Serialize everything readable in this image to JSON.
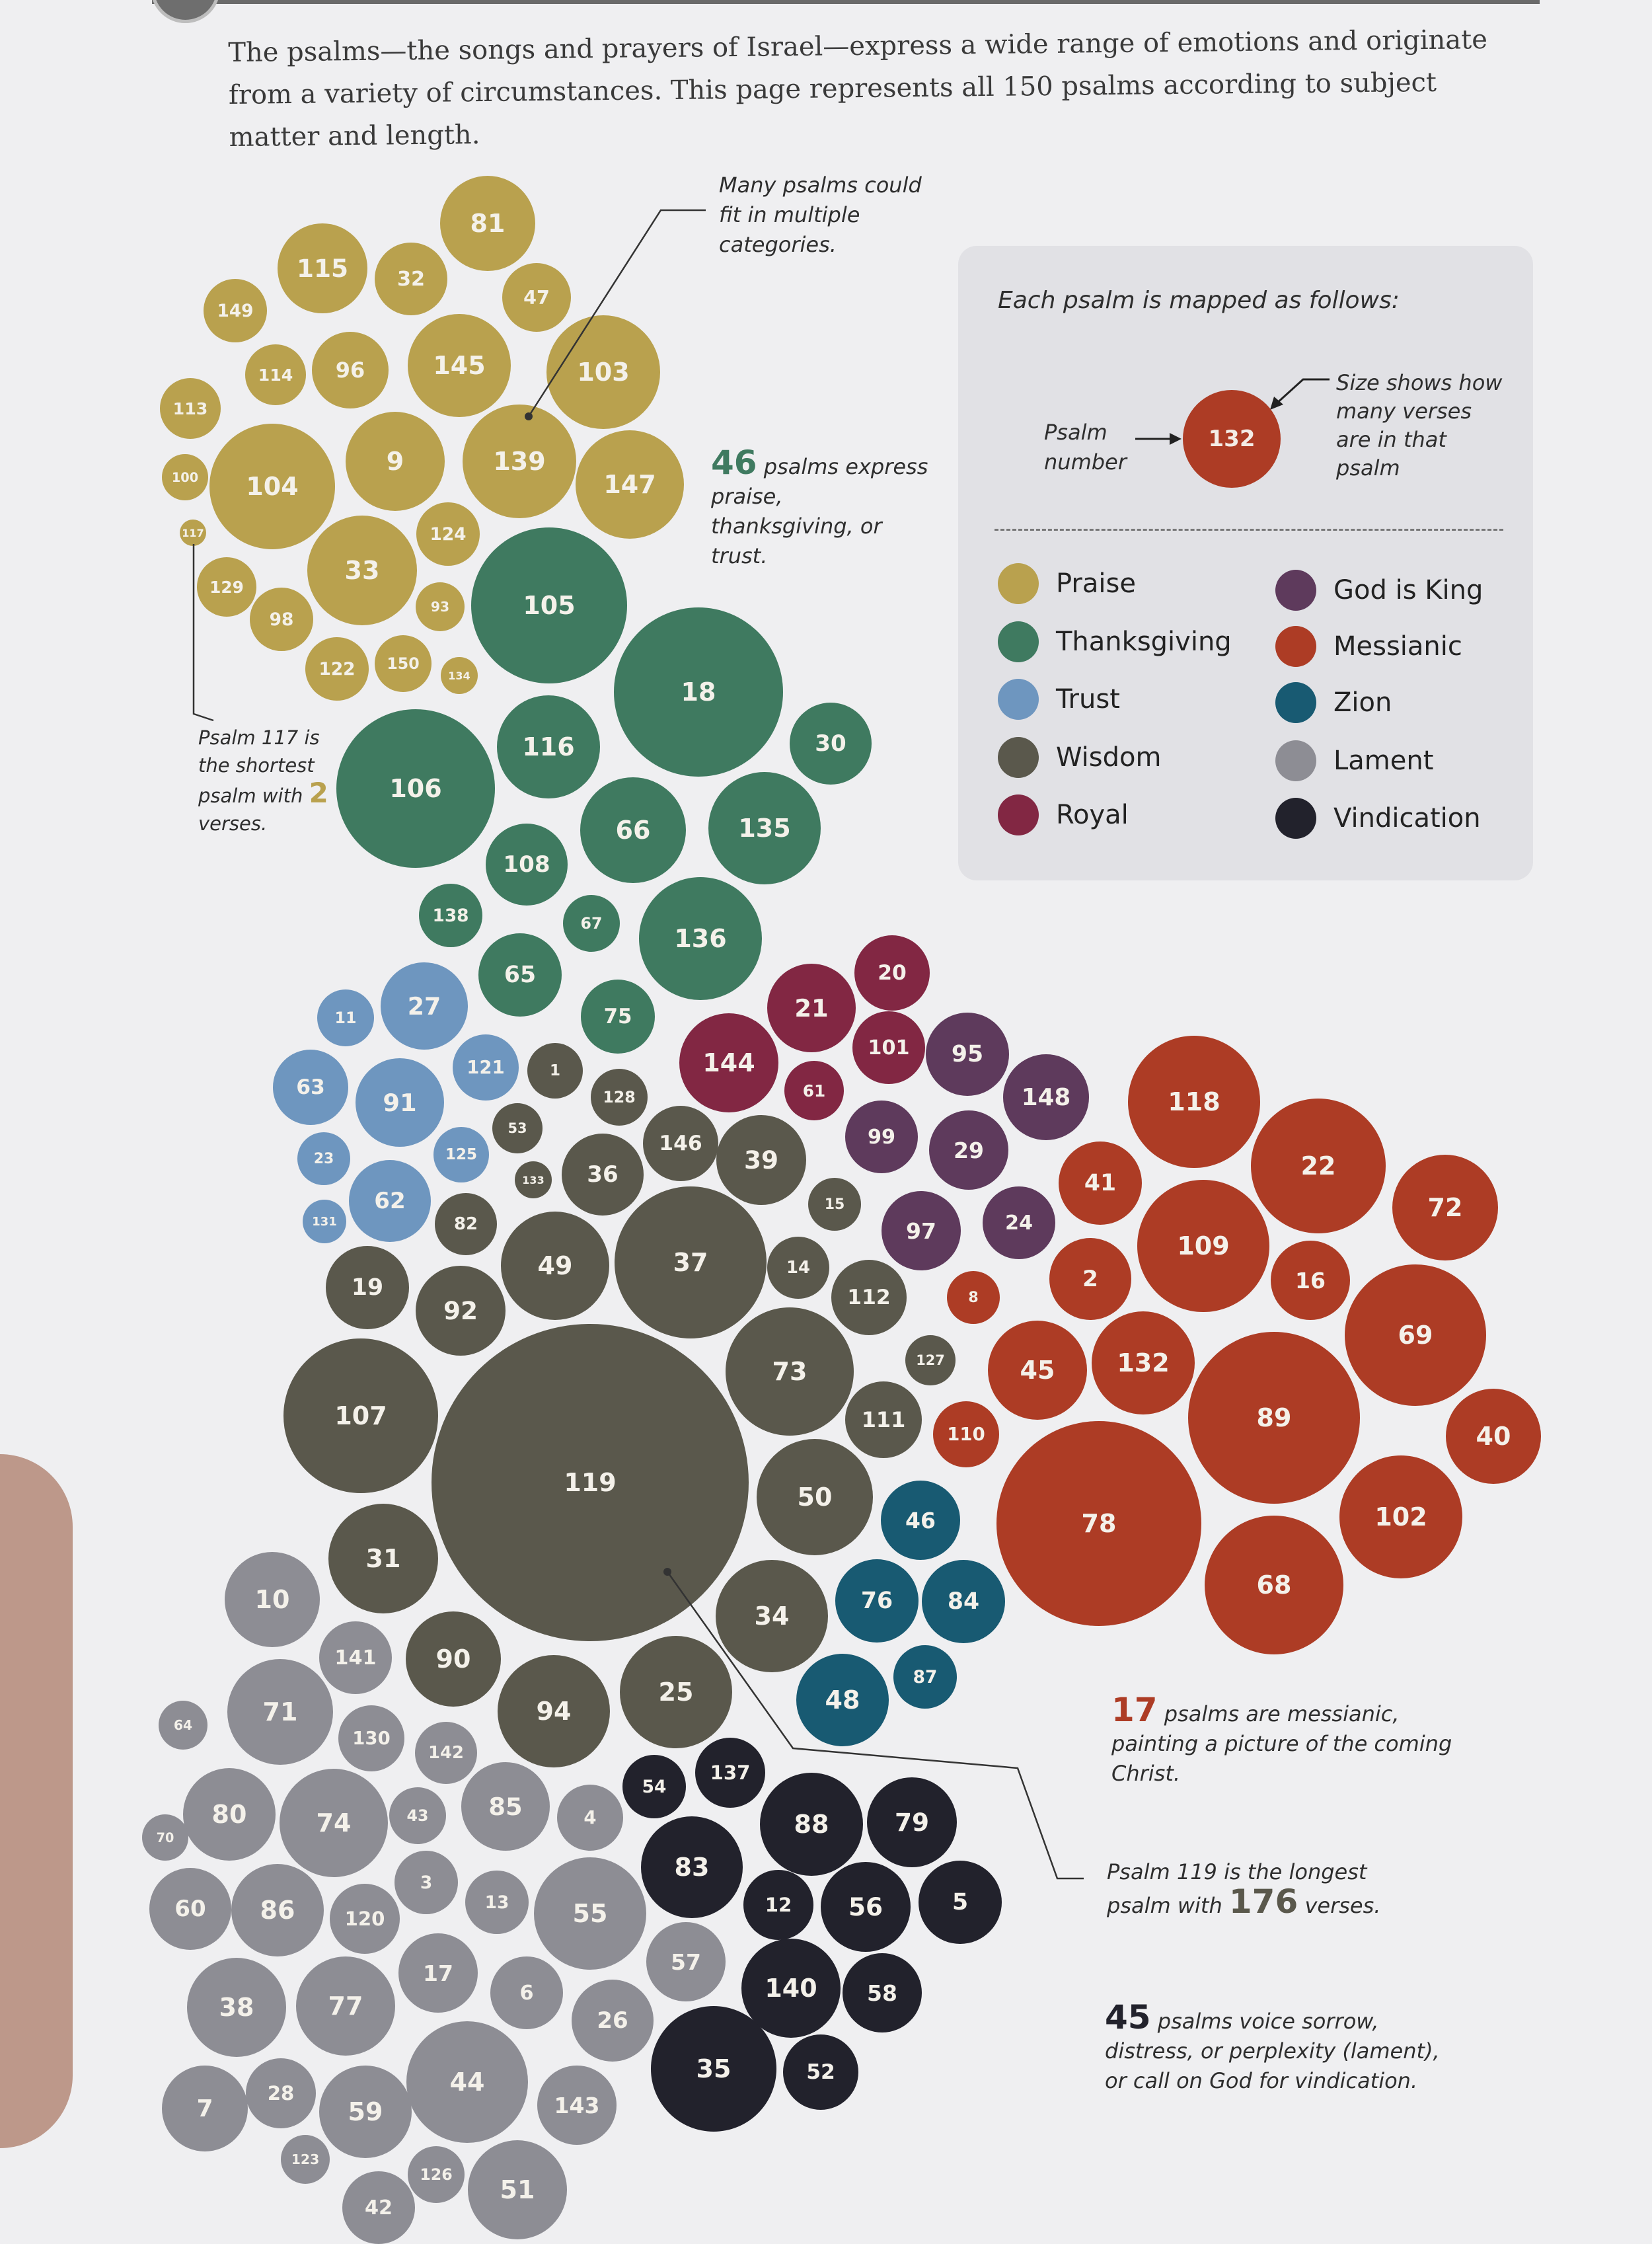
{
  "intro": "The psalms—the songs and prayers of Israel—express a wide range of emotions and originate from a variety of circumstances. This page represents all 150 psalms according to subject matter and length.",
  "colors": {
    "praise": "#b9a14e",
    "thanksgiving": "#3f7a60",
    "trust": "#6e96bf",
    "wisdom": "#5a584c",
    "royal": "#822743",
    "godisking": "#5e3a5c",
    "messianic": "#ad3c25",
    "zion": "#185a72",
    "lament": "#8d8d94",
    "vindication": "#22222c"
  },
  "legend": {
    "title": "Each psalm is mapped as follows:",
    "example_number": "132",
    "psalm_number_label": "Psalm number",
    "size_label": "Size shows how many verses are in that psalm",
    "items": [
      {
        "key": "praise",
        "label": "Praise"
      },
      {
        "key": "thanksgiving",
        "label": "Thanksgiving"
      },
      {
        "key": "trust",
        "label": "Trust"
      },
      {
        "key": "wisdom",
        "label": "Wisdom"
      },
      {
        "key": "royal",
        "label": "Royal"
      },
      {
        "key": "godisking",
        "label": "God is King"
      },
      {
        "key": "messianic",
        "label": "Messianic"
      },
      {
        "key": "zion",
        "label": "Zion"
      },
      {
        "key": "lament",
        "label": "Lament"
      },
      {
        "key": "vindication",
        "label": "Vindication"
      }
    ]
  },
  "notes": {
    "multiple": "Many psalms could fit in multiple categories.",
    "praise_count": "46",
    "praise_text": "psalms express praise, thanksgiving, or trust.",
    "shortest_a": "Psalm 117 is the shortest psalm with",
    "shortest_num": "2",
    "shortest_b": "verses.",
    "messianic_count": "17",
    "messianic_text": "psalms are messianic, painting a picture of the coming Christ.",
    "longest_a": "Psalm 119 is the longest psalm with",
    "longest_num": "176",
    "longest_b": "verses.",
    "lament_count": "45",
    "lament_text": "psalms voice sorrow, distress, or perplexity (lament), or call on God for vindication."
  },
  "psalms": [
    {
      "n": "81",
      "c": "praise"
    },
    {
      "n": "115",
      "c": "praise"
    },
    {
      "n": "32",
      "c": "praise"
    },
    {
      "n": "47",
      "c": "praise"
    },
    {
      "n": "149",
      "c": "praise"
    },
    {
      "n": "114",
      "c": "praise"
    },
    {
      "n": "96",
      "c": "praise"
    },
    {
      "n": "145",
      "c": "praise"
    },
    {
      "n": "103",
      "c": "praise"
    },
    {
      "n": "113",
      "c": "praise"
    },
    {
      "n": "100",
      "c": "praise"
    },
    {
      "n": "104",
      "c": "praise"
    },
    {
      "n": "9",
      "c": "praise"
    },
    {
      "n": "139",
      "c": "praise"
    },
    {
      "n": "147",
      "c": "praise"
    },
    {
      "n": "117",
      "c": "praise"
    },
    {
      "n": "124",
      "c": "praise"
    },
    {
      "n": "33",
      "c": "praise"
    },
    {
      "n": "129",
      "c": "praise"
    },
    {
      "n": "98",
      "c": "praise"
    },
    {
      "n": "93",
      "c": "praise"
    },
    {
      "n": "122",
      "c": "praise"
    },
    {
      "n": "150",
      "c": "praise"
    },
    {
      "n": "134",
      "c": "praise"
    },
    {
      "n": "105",
      "c": "thanksgiving"
    },
    {
      "n": "18",
      "c": "thanksgiving"
    },
    {
      "n": "30",
      "c": "thanksgiving"
    },
    {
      "n": "116",
      "c": "thanksgiving"
    },
    {
      "n": "106",
      "c": "thanksgiving"
    },
    {
      "n": "66",
      "c": "thanksgiving"
    },
    {
      "n": "135",
      "c": "thanksgiving"
    },
    {
      "n": "108",
      "c": "thanksgiving"
    },
    {
      "n": "138",
      "c": "thanksgiving"
    },
    {
      "n": "67",
      "c": "thanksgiving"
    },
    {
      "n": "136",
      "c": "thanksgiving"
    },
    {
      "n": "65",
      "c": "thanksgiving"
    },
    {
      "n": "75",
      "c": "thanksgiving"
    },
    {
      "n": "11",
      "c": "trust"
    },
    {
      "n": "27",
      "c": "trust"
    },
    {
      "n": "63",
      "c": "trust"
    },
    {
      "n": "91",
      "c": "trust"
    },
    {
      "n": "121",
      "c": "trust"
    },
    {
      "n": "23",
      "c": "trust"
    },
    {
      "n": "125",
      "c": "trust"
    },
    {
      "n": "62",
      "c": "trust"
    },
    {
      "n": "131",
      "c": "trust"
    },
    {
      "n": "1",
      "c": "wisdom"
    },
    {
      "n": "128",
      "c": "wisdom"
    },
    {
      "n": "53",
      "c": "wisdom"
    },
    {
      "n": "133",
      "c": "wisdom"
    },
    {
      "n": "36",
      "c": "wisdom"
    },
    {
      "n": "146",
      "c": "wisdom"
    },
    {
      "n": "39",
      "c": "wisdom"
    },
    {
      "n": "15",
      "c": "wisdom"
    },
    {
      "n": "82",
      "c": "wisdom"
    },
    {
      "n": "49",
      "c": "wisdom"
    },
    {
      "n": "37",
      "c": "wisdom"
    },
    {
      "n": "14",
      "c": "wisdom"
    },
    {
      "n": "112",
      "c": "wisdom"
    },
    {
      "n": "19",
      "c": "wisdom"
    },
    {
      "n": "92",
      "c": "wisdom"
    },
    {
      "n": "73",
      "c": "wisdom"
    },
    {
      "n": "127",
      "c": "wisdom"
    },
    {
      "n": "107",
      "c": "wisdom"
    },
    {
      "n": "111",
      "c": "wisdom"
    },
    {
      "n": "119",
      "c": "wisdom"
    },
    {
      "n": "50",
      "c": "wisdom"
    },
    {
      "n": "31",
      "c": "wisdom"
    },
    {
      "n": "34",
      "c": "wisdom"
    },
    {
      "n": "90",
      "c": "wisdom"
    },
    {
      "n": "94",
      "c": "wisdom"
    },
    {
      "n": "25",
      "c": "wisdom"
    },
    {
      "n": "20",
      "c": "royal"
    },
    {
      "n": "21",
      "c": "royal"
    },
    {
      "n": "144",
      "c": "royal"
    },
    {
      "n": "101",
      "c": "royal"
    },
    {
      "n": "61",
      "c": "royal"
    },
    {
      "n": "95",
      "c": "godisking"
    },
    {
      "n": "148",
      "c": "godisking"
    },
    {
      "n": "99",
      "c": "godisking"
    },
    {
      "n": "29",
      "c": "godisking"
    },
    {
      "n": "97",
      "c": "godisking"
    },
    {
      "n": "24",
      "c": "godisking"
    },
    {
      "n": "118",
      "c": "messianic"
    },
    {
      "n": "22",
      "c": "messianic"
    },
    {
      "n": "41",
      "c": "messianic"
    },
    {
      "n": "72",
      "c": "messianic"
    },
    {
      "n": "109",
      "c": "messianic"
    },
    {
      "n": "16",
      "c": "messianic"
    },
    {
      "n": "8",
      "c": "messianic"
    },
    {
      "n": "2",
      "c": "messianic"
    },
    {
      "n": "69",
      "c": "messianic"
    },
    {
      "n": "45",
      "c": "messianic"
    },
    {
      "n": "132",
      "c": "messianic"
    },
    {
      "n": "89",
      "c": "messianic"
    },
    {
      "n": "110",
      "c": "messianic"
    },
    {
      "n": "40",
      "c": "messianic"
    },
    {
      "n": "78",
      "c": "messianic"
    },
    {
      "n": "102",
      "c": "messianic"
    },
    {
      "n": "68",
      "c": "messianic"
    },
    {
      "n": "46",
      "c": "zion"
    },
    {
      "n": "76",
      "c": "zion"
    },
    {
      "n": "84",
      "c": "zion"
    },
    {
      "n": "87",
      "c": "zion"
    },
    {
      "n": "48",
      "c": "zion"
    },
    {
      "n": "10",
      "c": "lament"
    },
    {
      "n": "141",
      "c": "lament"
    },
    {
      "n": "64",
      "c": "lament"
    },
    {
      "n": "71",
      "c": "lament"
    },
    {
      "n": "130",
      "c": "lament"
    },
    {
      "n": "142",
      "c": "lament"
    },
    {
      "n": "80",
      "c": "lament"
    },
    {
      "n": "74",
      "c": "lament"
    },
    {
      "n": "43",
      "c": "lament"
    },
    {
      "n": "85",
      "c": "lament"
    },
    {
      "n": "4",
      "c": "lament"
    },
    {
      "n": "70",
      "c": "lament"
    },
    {
      "n": "60",
      "c": "lament"
    },
    {
      "n": "86",
      "c": "lament"
    },
    {
      "n": "3",
      "c": "lament"
    },
    {
      "n": "120",
      "c": "lament"
    },
    {
      "n": "13",
      "c": "lament"
    },
    {
      "n": "55",
      "c": "lament"
    },
    {
      "n": "57",
      "c": "lament"
    },
    {
      "n": "38",
      "c": "lament"
    },
    {
      "n": "77",
      "c": "lament"
    },
    {
      "n": "17",
      "c": "lament"
    },
    {
      "n": "6",
      "c": "lament"
    },
    {
      "n": "26",
      "c": "lament"
    },
    {
      "n": "7",
      "c": "lament"
    },
    {
      "n": "28",
      "c": "lament"
    },
    {
      "n": "59",
      "c": "lament"
    },
    {
      "n": "44",
      "c": "lament"
    },
    {
      "n": "143",
      "c": "lament"
    },
    {
      "n": "123",
      "c": "lament"
    },
    {
      "n": "126",
      "c": "lament"
    },
    {
      "n": "42",
      "c": "lament"
    },
    {
      "n": "51",
      "c": "lament"
    },
    {
      "n": "54",
      "c": "vindication"
    },
    {
      "n": "137",
      "c": "vindication"
    },
    {
      "n": "88",
      "c": "vindication"
    },
    {
      "n": "79",
      "c": "vindication"
    },
    {
      "n": "83",
      "c": "vindication"
    },
    {
      "n": "12",
      "c": "vindication"
    },
    {
      "n": "56",
      "c": "vindication"
    },
    {
      "n": "5",
      "c": "vindication"
    },
    {
      "n": "140",
      "c": "vindication"
    },
    {
      "n": "58",
      "c": "vindication"
    },
    {
      "n": "35",
      "c": "vindication"
    },
    {
      "n": "52",
      "c": "vindication"
    }
  ]
}
